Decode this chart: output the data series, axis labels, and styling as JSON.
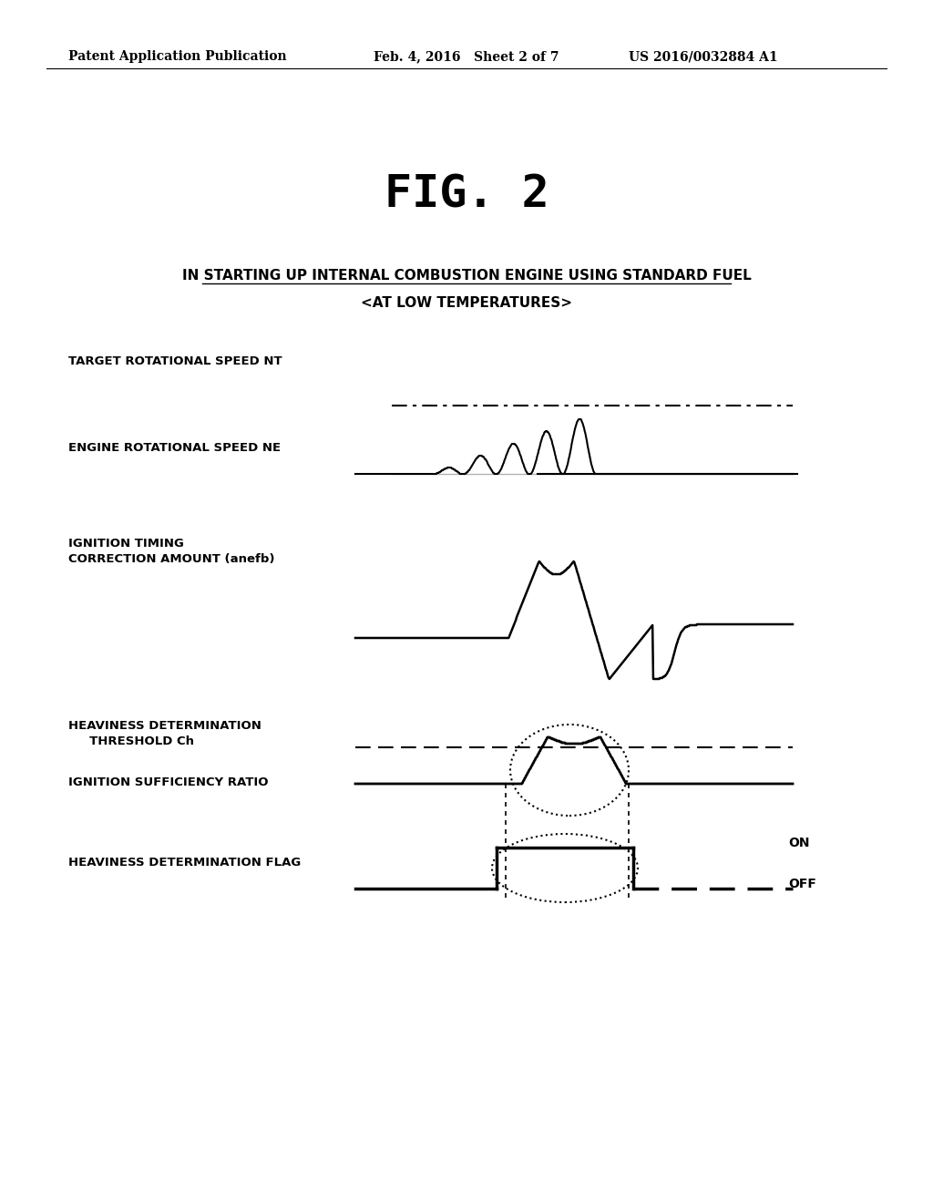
{
  "background_color": "#ffffff",
  "header_left": "Patent Application Publication",
  "header_mid": "Feb. 4, 2016   Sheet 2 of 7",
  "header_right": "US 2016/0032884 A1",
  "fig_title": "FIG. 2",
  "subtitle1": "IN STARTING UP INTERNAL COMBUSTION ENGINE USING STANDARD FUEL",
  "subtitle2": "<AT LOW TEMPERATURES>",
  "label_target_speed": "TARGET ROTATIONAL SPEED NT",
  "label_engine_speed": "ENGINE ROTATIONAL SPEED NE",
  "label_ignition": "IGNITION TIMING\nCORRECTION AMOUNT (anefb)",
  "label_heaviness_thresh": "HEAVINESS DETERMINATION\n     THRESHOLD Ch",
  "label_ignition_ratio": "IGNITION SUFFICIENCY RATIO",
  "label_flag": "HEAVINESS DETERMINATION FLAG",
  "label_on": "ON",
  "label_off": "OFF"
}
